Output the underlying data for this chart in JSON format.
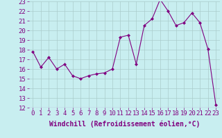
{
  "x": [
    0,
    1,
    2,
    3,
    4,
    5,
    6,
    7,
    8,
    9,
    10,
    11,
    12,
    13,
    14,
    15,
    16,
    17,
    18,
    19,
    20,
    21,
    22,
    23
  ],
  "y": [
    17.8,
    16.2,
    17.2,
    16.0,
    16.5,
    15.3,
    15.0,
    15.3,
    15.5,
    15.6,
    16.0,
    19.3,
    19.5,
    16.5,
    20.5,
    21.2,
    23.2,
    22.0,
    20.5,
    20.8,
    21.8,
    20.8,
    18.1,
    12.3
  ],
  "line_color": "#800080",
  "marker": "D",
  "marker_size": 2.0,
  "bg_color": "#c8eef0",
  "grid_color": "#aacccc",
  "xlabel": "Windchill (Refroidissement éolien,°C)",
  "xlabel_color": "#800080",
  "tick_color": "#800080",
  "ylim": [
    12,
    23
  ],
  "xlim": [
    -0.5,
    23.5
  ],
  "yticks": [
    12,
    13,
    14,
    15,
    16,
    17,
    18,
    19,
    20,
    21,
    22,
    23
  ],
  "xticks": [
    0,
    1,
    2,
    3,
    4,
    5,
    6,
    7,
    8,
    9,
    10,
    11,
    12,
    13,
    14,
    15,
    16,
    17,
    18,
    19,
    20,
    21,
    22,
    23
  ],
  "font_size": 6.5,
  "label_font_size": 7.0
}
